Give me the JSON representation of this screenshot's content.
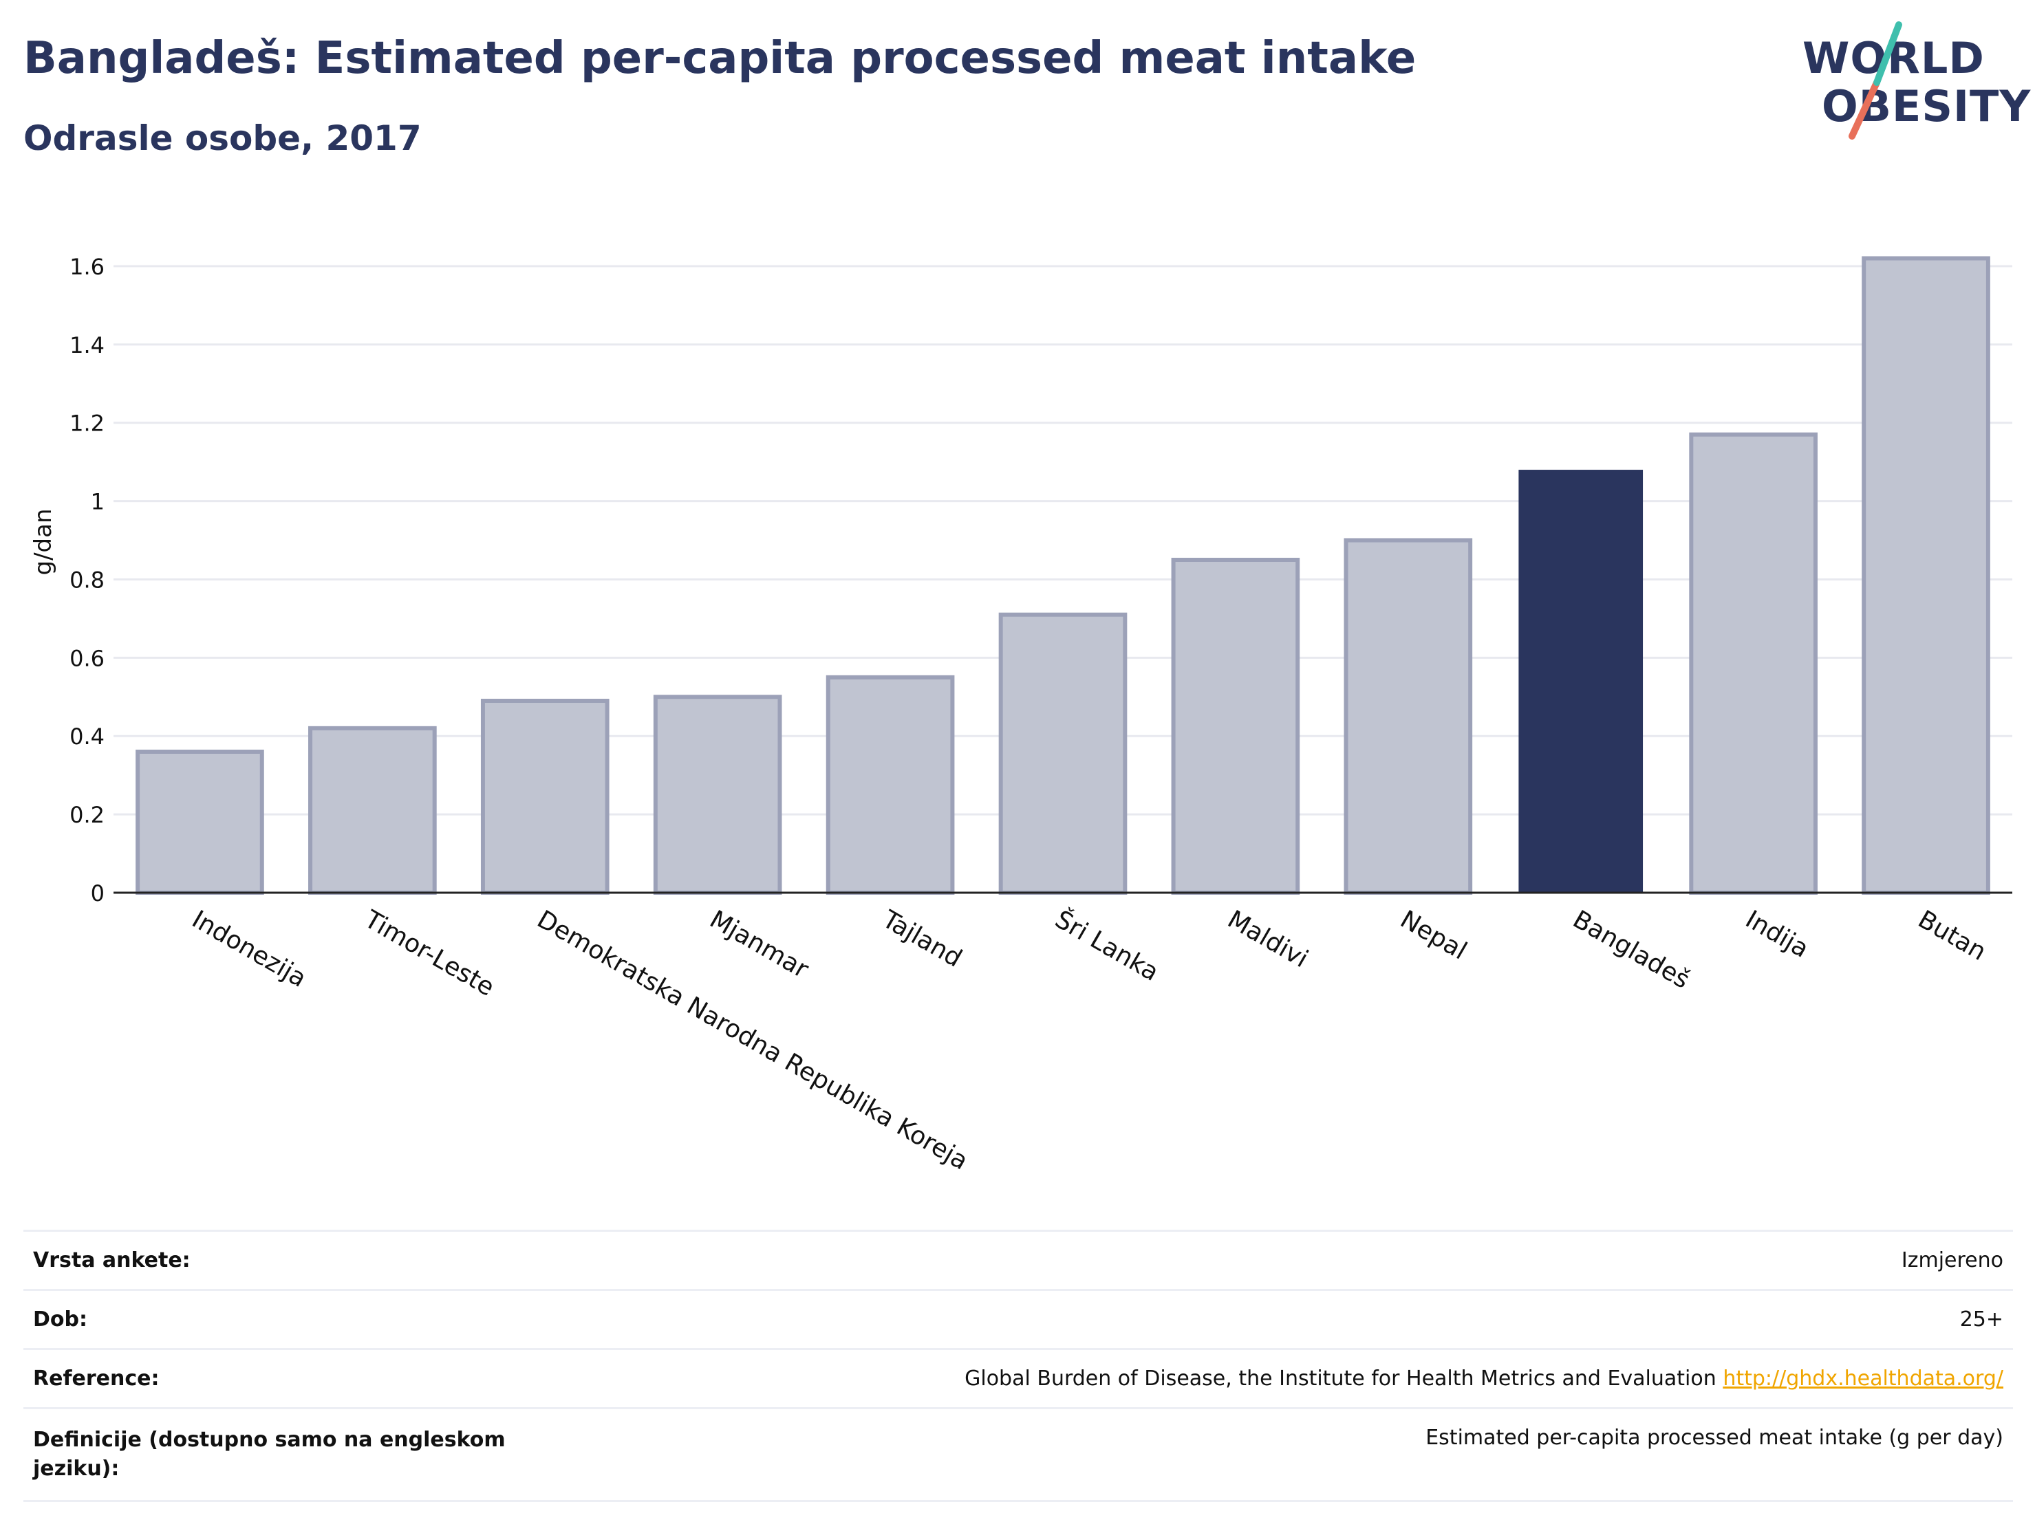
{
  "header": {
    "title": "Bangladeš: Estimated per-capita processed meat intake",
    "subtitle": "Odrasle osobe, 2017"
  },
  "logo": {
    "line1": "WORLD",
    "line2": "OBESITY"
  },
  "chart_data": {
    "type": "bar",
    "ylabel": "g/dan",
    "ylim": [
      0,
      1.7
    ],
    "yticks": [
      "0",
      "0.2",
      "0.4",
      "0.6",
      "0.8",
      "1",
      "1.2",
      "1.4",
      "1.6"
    ],
    "categories": [
      "Indonezija",
      "Timor-Leste",
      "Demokratska Narodna Republika Koreja",
      "Mjanmar",
      "Tajland",
      "Šri Lanka",
      "Maldivi",
      "Nepal",
      "Bangladeš",
      "Indija",
      "Butan"
    ],
    "values": [
      0.36,
      0.42,
      0.49,
      0.5,
      0.55,
      0.71,
      0.85,
      0.9,
      1.08,
      1.17,
      1.62
    ],
    "highlight": "Bangladeš",
    "colors": {
      "bar": "#c0c4d1",
      "bar_border": "#9ca1b8",
      "highlight": "#2a355e",
      "grid": "#e8e9ef"
    },
    "grid": true
  },
  "info": [
    {
      "label": "Vrsta ankete:",
      "value": "Izmjereno"
    },
    {
      "label": "Dob:",
      "value": "25+"
    },
    {
      "label": "Reference:",
      "value": "Global Burden of Disease, the Institute for Health Metrics and Evaluation",
      "link": "http://ghdx.healthdata.org/"
    },
    {
      "label": "Definicije (dostupno samo na engleskom jeziku):",
      "value": "Estimated per-capita processed meat intake (g per day)"
    }
  ]
}
